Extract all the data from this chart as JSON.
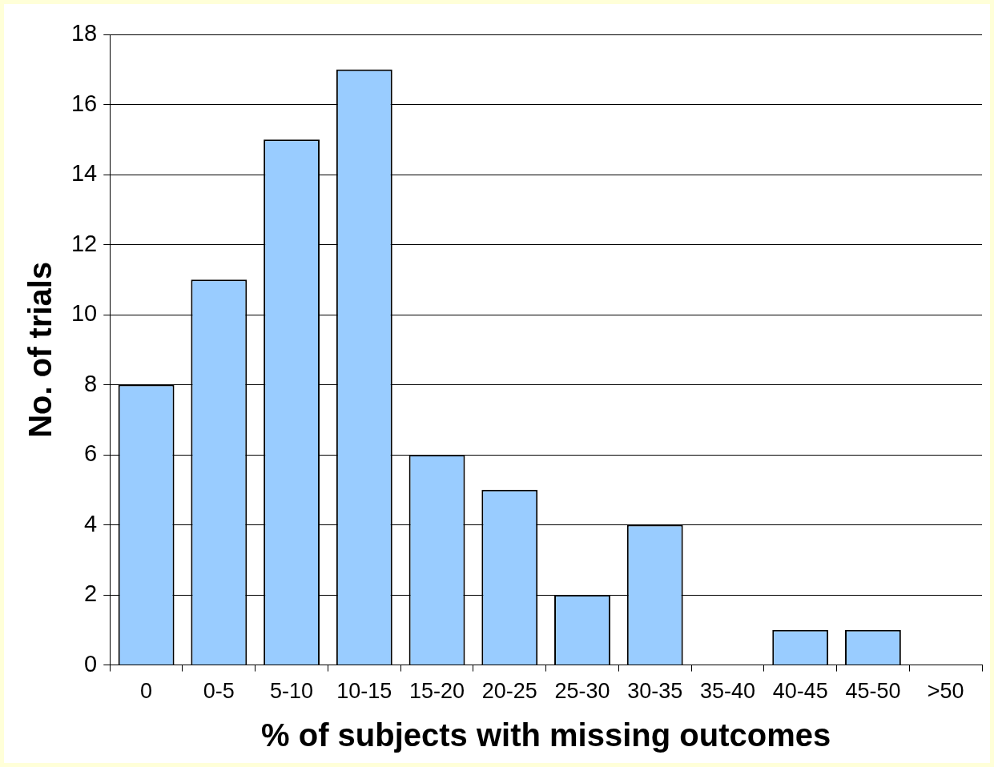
{
  "chart_data": {
    "type": "bar",
    "xlabel": "% of subjects with missing outcomes",
    "ylabel": "No. of trials",
    "categories": [
      "0",
      "0-5",
      "5-10",
      "10-15",
      "15-20",
      "20-25",
      "25-30",
      "30-35",
      "35-40",
      "40-45",
      "45-50",
      ">50"
    ],
    "values": [
      8,
      11,
      15,
      17,
      6,
      5,
      2,
      4,
      0,
      1,
      1,
      0
    ],
    "color": "#99ccff",
    "ylim": [
      0,
      18
    ],
    "yticks": [
      0,
      2,
      4,
      6,
      8,
      10,
      12,
      14,
      16,
      18
    ],
    "grid": "y",
    "legend": false
  }
}
